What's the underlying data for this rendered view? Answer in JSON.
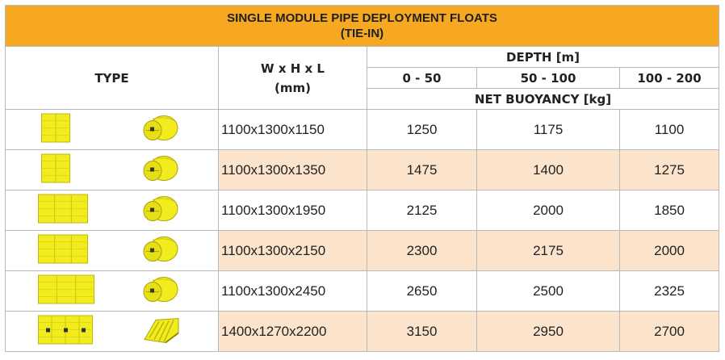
{
  "title_line1": "SINGLE MODULE PIPE DEPLOYMENT FLOATS",
  "title_line2": "(TIE-IN)",
  "headers": {
    "type": "TYPE",
    "dims_line1": "W x H x L",
    "dims_line2": "(mm)",
    "depth": "DEPTH [m]",
    "depth_ranges": [
      "0 - 50",
      "50 - 100",
      "100 - 200"
    ],
    "net_buoyancy": "NET BUOYANCY [kg]"
  },
  "colors": {
    "title_bg": "#f7a823",
    "alt_row_bg": "#fce4cc",
    "float_yellow": "#f2ec1f"
  },
  "rows": [
    {
      "dims": "1100x1300x1150",
      "b0_50": "1250",
      "b50_100": "1175",
      "b100_200": "1100",
      "icon": "float-module-small"
    },
    {
      "dims": "1100x1300x1350",
      "b0_50": "1475",
      "b50_100": "1400",
      "b100_200": "1275",
      "icon": "float-module-small"
    },
    {
      "dims": "1100x1300x1950",
      "b0_50": "2125",
      "b50_100": "2000",
      "b100_200": "1850",
      "icon": "float-module-medium"
    },
    {
      "dims": "1100x1300x2150",
      "b0_50": "2300",
      "b50_100": "2175",
      "b100_200": "2000",
      "icon": "float-module-medium"
    },
    {
      "dims": "1100x1300x2450",
      "b0_50": "2650",
      "b50_100": "2500",
      "b100_200": "2325",
      "icon": "float-module-long"
    },
    {
      "dims": "1400x1270x2200",
      "b0_50": "3150",
      "b50_100": "2950",
      "b100_200": "2700",
      "icon": "float-module-ribbed"
    }
  ]
}
